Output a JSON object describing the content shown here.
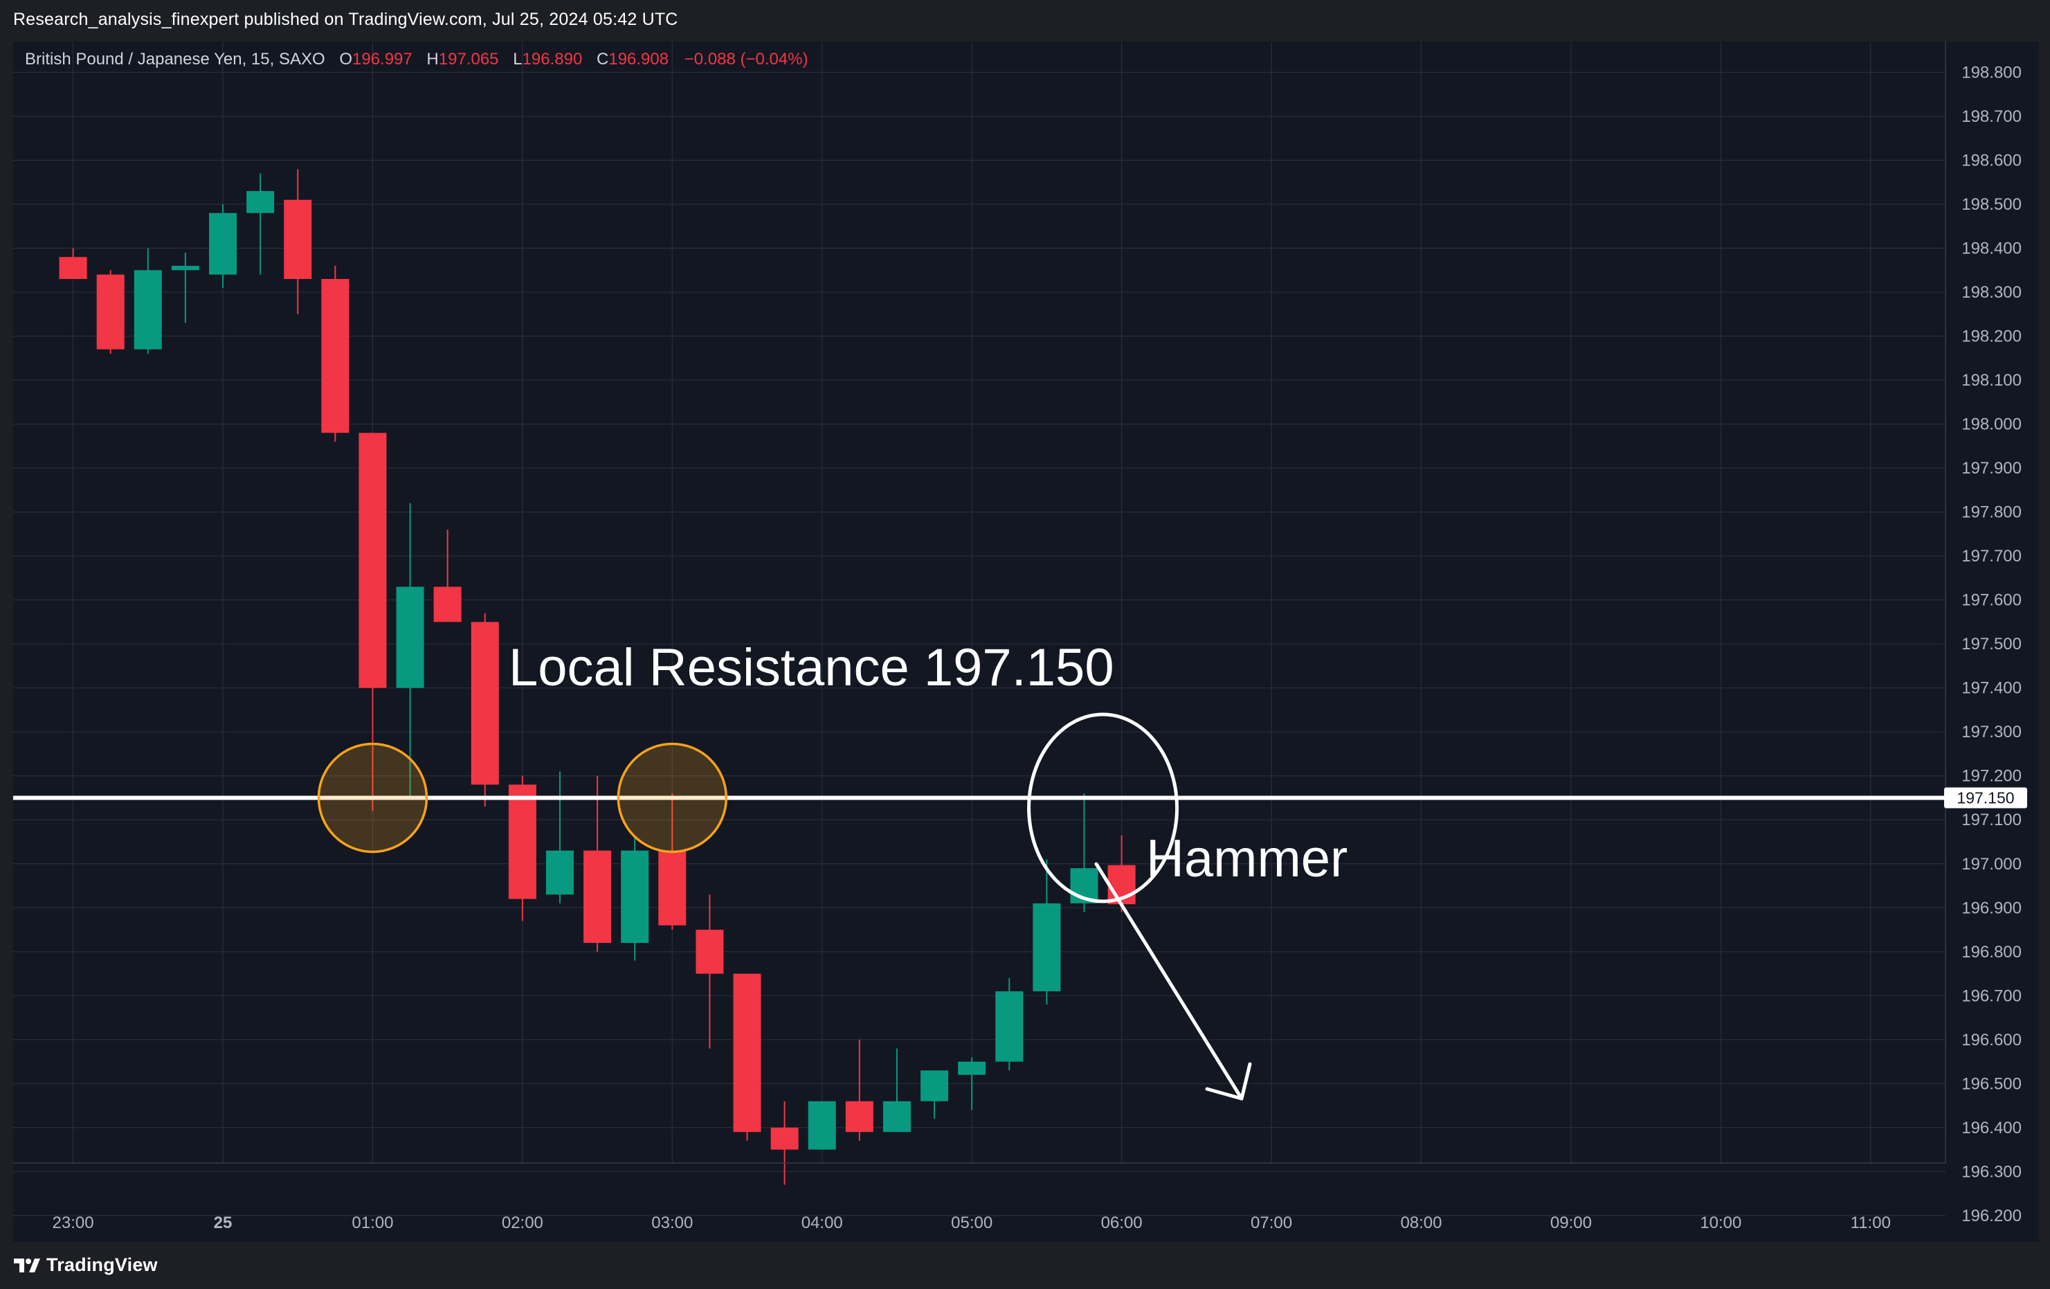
{
  "header": {
    "published_by": "Research_analysis_finexpert published on TradingView.com, Jul 25, 2024 05:42 UTC"
  },
  "legend": {
    "symbol": "British Pound / Japanese Yen, 15, SAXO",
    "open_label": "O",
    "open_value": "196.997",
    "high_label": "H",
    "high_value": "197.065",
    "low_label": "L",
    "low_value": "196.890",
    "close_label": "C",
    "close_value": "196.908",
    "change": "−0.088 (−0.04%)"
  },
  "footer": {
    "logo_text": "TradingView",
    "logo_icon": "tradingview-logo-icon"
  },
  "colors": {
    "background": "#131722",
    "bull": "#089981",
    "bear": "#f23645",
    "grid": "#2a2e39",
    "axis_text": "#b2b5be",
    "annotation": "#ffffff",
    "highlight": "#f7a21b"
  },
  "chart_data": {
    "type": "candlestick",
    "timeframe": "15",
    "ylim": [
      196.14,
      198.87
    ],
    "xlim": [
      -1.6,
      50
    ],
    "y_ticks": [
      "198.800",
      "198.700",
      "198.600",
      "198.500",
      "198.400",
      "198.300",
      "198.200",
      "198.100",
      "198.000",
      "197.900",
      "197.800",
      "197.700",
      "197.600",
      "197.500",
      "197.400",
      "197.300",
      "197.200",
      "197.100",
      "197.000",
      "196.900",
      "196.800",
      "196.700",
      "196.600",
      "196.500",
      "196.400",
      "196.300",
      "196.200"
    ],
    "x_ticks": [
      {
        "label": "23:00",
        "i": 0
      },
      {
        "label": "25",
        "i": 4
      },
      {
        "label": "01:00",
        "i": 8
      },
      {
        "label": "02:00",
        "i": 12
      },
      {
        "label": "03:00",
        "i": 16
      },
      {
        "label": "04:00",
        "i": 20
      },
      {
        "label": "05:00",
        "i": 24
      },
      {
        "label": "06:00",
        "i": 28
      },
      {
        "label": "07:00",
        "i": 32
      },
      {
        "label": "08:00",
        "i": 36
      },
      {
        "label": "09:00",
        "i": 40
      },
      {
        "label": "10:00",
        "i": 44
      },
      {
        "label": "11:00",
        "i": 48
      }
    ],
    "candles": [
      {
        "o": 198.38,
        "h": 198.4,
        "l": 198.33,
        "c": 198.33
      },
      {
        "o": 198.34,
        "h": 198.35,
        "l": 198.16,
        "c": 198.17
      },
      {
        "o": 198.17,
        "h": 198.4,
        "l": 198.16,
        "c": 198.35
      },
      {
        "o": 198.35,
        "h": 198.39,
        "l": 198.23,
        "c": 198.36
      },
      {
        "o": 198.34,
        "h": 198.5,
        "l": 198.31,
        "c": 198.48
      },
      {
        "o": 198.48,
        "h": 198.57,
        "l": 198.34,
        "c": 198.53
      },
      {
        "o": 198.51,
        "h": 198.58,
        "l": 198.25,
        "c": 198.33
      },
      {
        "o": 198.33,
        "h": 198.36,
        "l": 197.96,
        "c": 197.98
      },
      {
        "o": 197.98,
        "h": 197.98,
        "l": 197.12,
        "c": 197.4
      },
      {
        "o": 197.4,
        "h": 197.82,
        "l": 197.15,
        "c": 197.63
      },
      {
        "o": 197.63,
        "h": 197.76,
        "l": 197.55,
        "c": 197.55
      },
      {
        "o": 197.55,
        "h": 197.57,
        "l": 197.13,
        "c": 197.18
      },
      {
        "o": 197.18,
        "h": 197.2,
        "l": 196.87,
        "c": 196.92
      },
      {
        "o": 196.93,
        "h": 197.21,
        "l": 196.91,
        "c": 197.03
      },
      {
        "o": 197.03,
        "h": 197.2,
        "l": 196.8,
        "c": 196.82
      },
      {
        "o": 196.82,
        "h": 197.06,
        "l": 196.78,
        "c": 197.03
      },
      {
        "o": 197.03,
        "h": 197.16,
        "l": 196.85,
        "c": 196.86
      },
      {
        "o": 196.85,
        "h": 196.93,
        "l": 196.58,
        "c": 196.75
      },
      {
        "o": 196.75,
        "h": 196.75,
        "l": 196.37,
        "c": 196.39
      },
      {
        "o": 196.4,
        "h": 196.46,
        "l": 196.27,
        "c": 196.35
      },
      {
        "o": 196.35,
        "h": 196.46,
        "l": 196.35,
        "c": 196.46
      },
      {
        "o": 196.46,
        "h": 196.6,
        "l": 196.37,
        "c": 196.39
      },
      {
        "o": 196.39,
        "h": 196.58,
        "l": 196.39,
        "c": 196.46
      },
      {
        "o": 196.46,
        "h": 196.53,
        "l": 196.42,
        "c": 196.53
      },
      {
        "o": 196.52,
        "h": 196.56,
        "l": 196.44,
        "c": 196.55
      },
      {
        "o": 196.55,
        "h": 196.74,
        "l": 196.53,
        "c": 196.71
      },
      {
        "o": 196.71,
        "h": 197.01,
        "l": 196.68,
        "c": 196.91
      },
      {
        "o": 196.91,
        "h": 197.16,
        "l": 196.89,
        "c": 196.99
      },
      {
        "o": 196.997,
        "h": 197.065,
        "l": 196.89,
        "c": 196.908
      }
    ]
  },
  "annotations": {
    "resistance_level": 197.15,
    "resistance_price_label": "197.150",
    "resistance_text": "Local Resistance 197.150",
    "hammer_text": "Hammer"
  }
}
